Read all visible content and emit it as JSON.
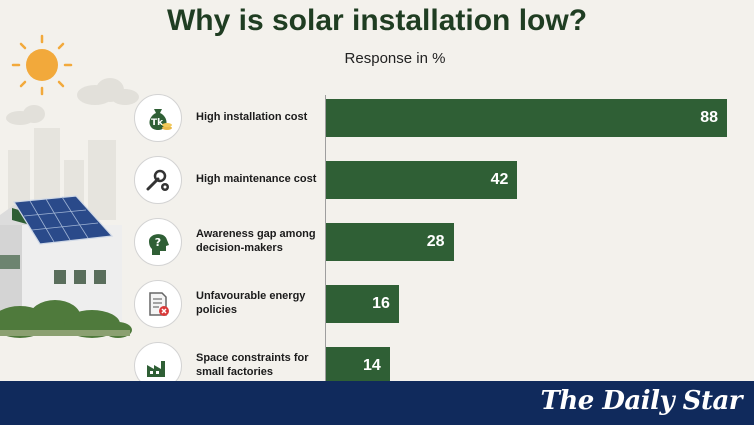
{
  "header": {
    "title": "Why is solar installation low?",
    "subtitle": "Response in %"
  },
  "chart_data": {
    "type": "bar",
    "orientation": "horizontal",
    "title": "Why is solar installation low?",
    "subtitle": "Response in %",
    "categories": [
      "High installation cost",
      "High maintenance cost",
      "Awareness gap among decision-makers",
      "Unfavourable energy policies",
      "Space constraints for small factories"
    ],
    "values": [
      88,
      42,
      28,
      16,
      14
    ],
    "xlim": [
      0,
      88
    ],
    "grid": false,
    "legend": "none",
    "bar_color": "#2f5f35",
    "icons": [
      "money-bag-icon",
      "wrench-gear-icon",
      "head-question-icon",
      "document-x-icon",
      "factory-icon"
    ]
  },
  "labels": {
    "row0": [
      "High installation cost"
    ],
    "row1": [
      "High maintenance cost"
    ],
    "row2": [
      "Awareness gap among",
      "decision-makers"
    ],
    "row3": [
      "Unfavourable energy policies"
    ],
    "row4": [
      "Space constraints for",
      "small factories"
    ]
  },
  "footer": {
    "brand": "The Daily Star",
    "background": "#102a5c"
  },
  "colors": {
    "title": "#1f3d22",
    "bar": "#2f5f35",
    "sun": "#f2a93b",
    "panel": "#2a4a8a"
  }
}
